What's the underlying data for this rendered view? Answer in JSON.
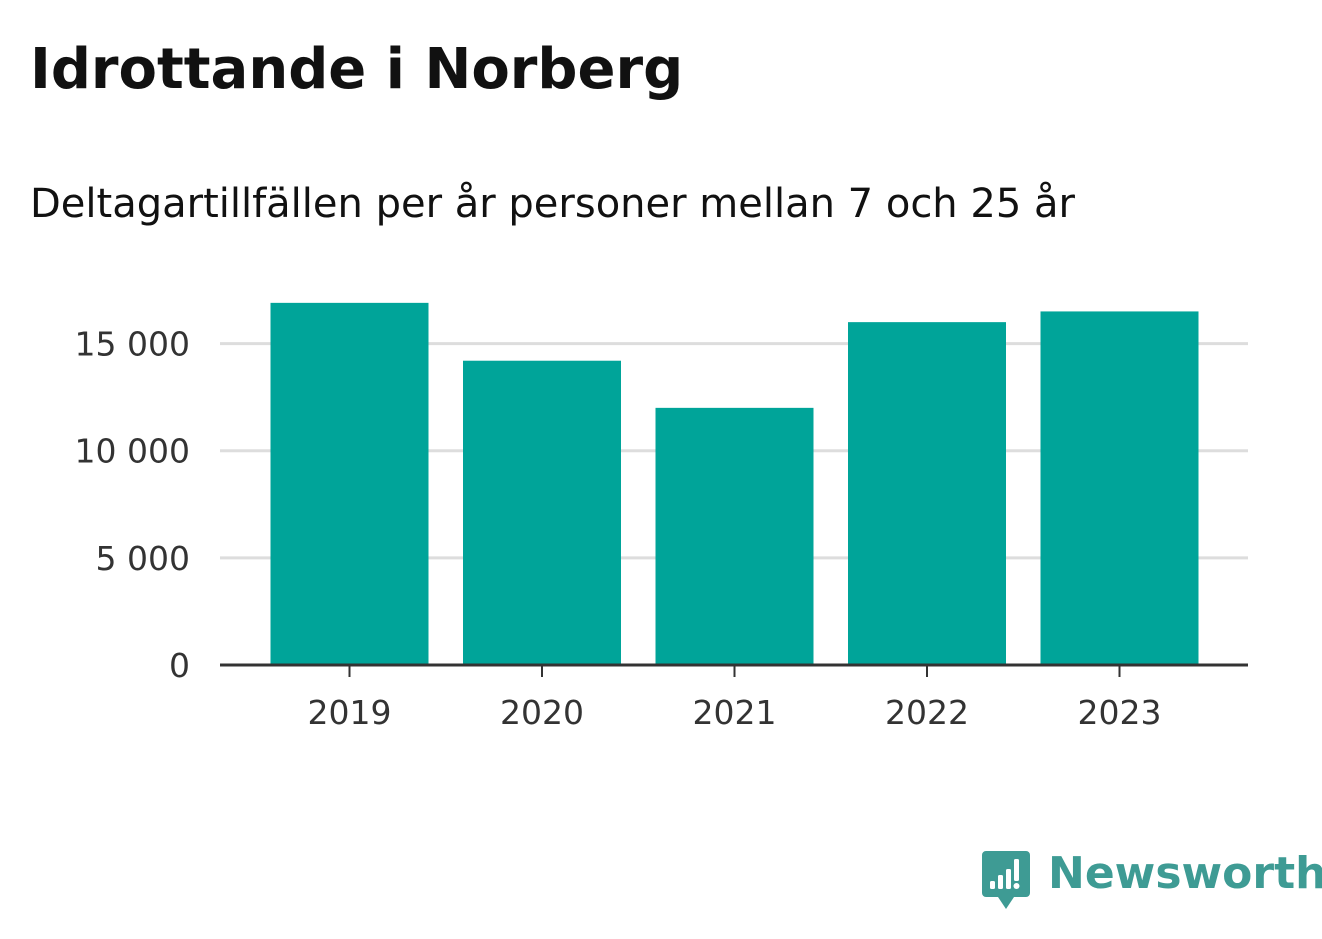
{
  "chart_data": {
    "type": "bar",
    "title": "Idrottande i Norberg",
    "subtitle": "Deltagartillfällen per år personer mellan 7 och 25 år",
    "categories": [
      "2019",
      "2020",
      "2021",
      "2022",
      "2023"
    ],
    "values": [
      16900,
      14200,
      12000,
      16000,
      16500
    ],
    "ylim": [
      0,
      17500
    ],
    "yticks": [
      0,
      5000,
      10000,
      15000
    ],
    "ytick_labels": [
      "0",
      "5 000",
      "10 000",
      "15 000"
    ],
    "grid": true,
    "bar_color": "#00a499"
  },
  "branding": {
    "name": "Newsworthy",
    "color": "#3e9b94",
    "icon": "newsworthy-logo-icon"
  }
}
